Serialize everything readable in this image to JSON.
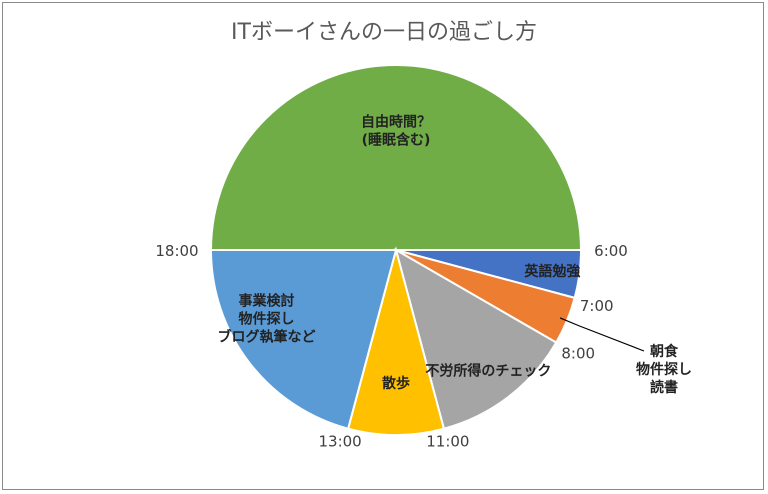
{
  "chart_data": {
    "type": "pie",
    "title": "ITボーイさんの一日の過ごし方",
    "slices": [
      {
        "start": "18:00",
        "end": "6:00",
        "hours": 12,
        "color": "#70ad47",
        "label": [
          "自由時間？",
          "(睡眠含む)"
        ]
      },
      {
        "start": "6:00",
        "end": "7:00",
        "hours": 1,
        "color": "#4472c4",
        "label": [
          "英語勉強"
        ]
      },
      {
        "start": "7:00",
        "end": "8:00",
        "hours": 1,
        "color": "#ed7d31",
        "label": [
          "朝食",
          "物件探し",
          "読書"
        ]
      },
      {
        "start": "8:00",
        "end": "11:00",
        "hours": 3,
        "color": "#a5a5a5",
        "label": [
          "不労所得のチェック"
        ]
      },
      {
        "start": "11:00",
        "end": "13:00",
        "hours": 2,
        "color": "#ffc000",
        "label": [
          "散歩"
        ]
      },
      {
        "start": "13:00",
        "end": "18:00",
        "hours": 5,
        "color": "#5b9bd5",
        "label": [
          "事業検討",
          "物件探し",
          "ブログ執筆など"
        ]
      }
    ],
    "time_labels": [
      "6:00",
      "7:00",
      "8:00",
      "11:00",
      "13:00",
      "18:00"
    ],
    "hours_total": 24
  }
}
